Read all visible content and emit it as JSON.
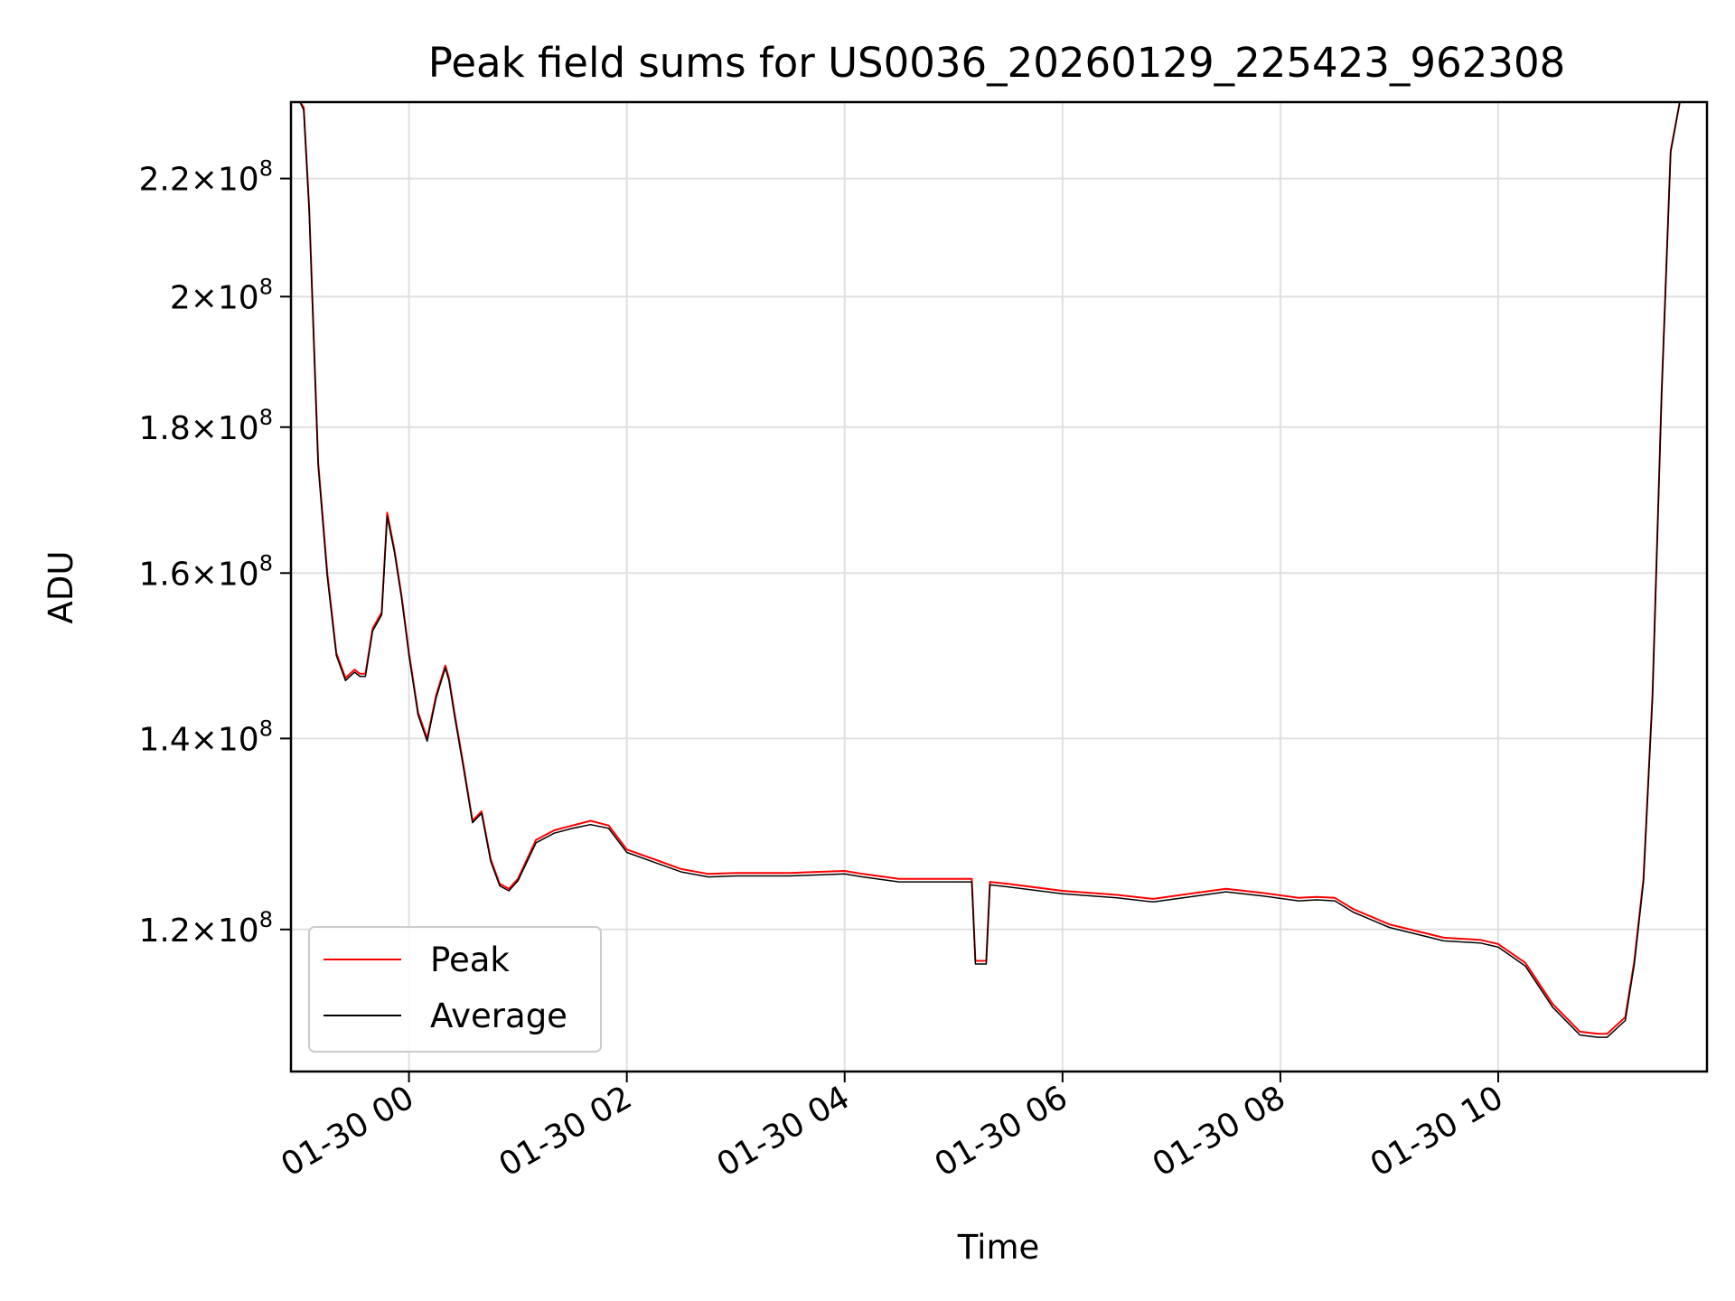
{
  "chart_data": {
    "type": "line",
    "title": "Peak field sums for US0036_20260129_225423_962308",
    "xlabel": "Time",
    "ylabel": "ADU",
    "x_axis": {
      "kind": "datetime",
      "range": [
        "2026-01-29T22:55:00",
        "2026-01-30T11:55:00"
      ],
      "ticks": [
        {
          "value": "2026-01-30T00:00:00",
          "label": "01-30 00"
        },
        {
          "value": "2026-01-30T02:00:00",
          "label": "01-30 02"
        },
        {
          "value": "2026-01-30T04:00:00",
          "label": "01-30 04"
        },
        {
          "value": "2026-01-30T06:00:00",
          "label": "01-30 06"
        },
        {
          "value": "2026-01-30T08:00:00",
          "label": "01-30 08"
        },
        {
          "value": "2026-01-30T10:00:00",
          "label": "01-30 10"
        }
      ]
    },
    "y_axis": {
      "scale": "log",
      "range": [
        107000000,
        234000000
      ],
      "ticks": [
        {
          "value": 120000000,
          "mantissa": "1.2",
          "base": "10",
          "exp": "8"
        },
        {
          "value": 140000000,
          "mantissa": "1.4",
          "base": "10",
          "exp": "8"
        },
        {
          "value": 160000000,
          "mantissa": "1.6",
          "base": "10",
          "exp": "8"
        },
        {
          "value": 180000000,
          "mantissa": "1.8",
          "base": "10",
          "exp": "8"
        },
        {
          "value": 200000000,
          "mantissa": "2",
          "base": "10",
          "exp": "8"
        },
        {
          "value": 220000000,
          "mantissa": "2.2",
          "base": "10",
          "exp": "8"
        }
      ]
    },
    "grid": true,
    "legend": {
      "placement": "lower-left"
    },
    "series": [
      {
        "name": "Peak",
        "color": "#ff0000",
        "x": [
          "2026-01-29T22:55:00",
          "2026-01-29T23:00:00",
          "2026-01-29T23:02:00",
          "2026-01-29T23:05:00",
          "2026-01-29T23:10:00",
          "2026-01-29T23:15:00",
          "2026-01-29T23:20:00",
          "2026-01-29T23:25:00",
          "2026-01-29T23:30:00",
          "2026-01-29T23:33:00",
          "2026-01-29T23:36:00",
          "2026-01-29T23:40:00",
          "2026-01-29T23:45:00",
          "2026-01-29T23:48:00",
          "2026-01-29T23:52:00",
          "2026-01-29T23:56:00",
          "2026-01-30T00:00:00",
          "2026-01-30T00:05:00",
          "2026-01-30T00:10:00",
          "2026-01-30T00:15:00",
          "2026-01-30T00:20:00",
          "2026-01-30T00:22:00",
          "2026-01-30T00:25:00",
          "2026-01-30T00:30:00",
          "2026-01-30T00:35:00",
          "2026-01-30T00:40:00",
          "2026-01-30T00:45:00",
          "2026-01-30T00:50:00",
          "2026-01-30T00:55:00",
          "2026-01-30T01:00:00",
          "2026-01-30T01:10:00",
          "2026-01-30T01:20:00",
          "2026-01-30T01:30:00",
          "2026-01-30T01:40:00",
          "2026-01-30T01:50:00",
          "2026-01-30T02:00:00",
          "2026-01-30T02:15:00",
          "2026-01-30T02:30:00",
          "2026-01-30T02:45:00",
          "2026-01-30T03:00:00",
          "2026-01-30T03:30:00",
          "2026-01-30T04:00:00",
          "2026-01-30T04:10:00",
          "2026-01-30T04:30:00",
          "2026-01-30T05:00:00",
          "2026-01-30T05:10:00",
          "2026-01-30T05:12:00",
          "2026-01-30T05:18:00",
          "2026-01-30T05:20:00",
          "2026-01-30T05:30:00",
          "2026-01-30T06:00:00",
          "2026-01-30T06:30:00",
          "2026-01-30T06:50:00",
          "2026-01-30T07:10:00",
          "2026-01-30T07:30:00",
          "2026-01-30T07:50:00",
          "2026-01-30T08:10:00",
          "2026-01-30T08:20:00",
          "2026-01-30T08:30:00",
          "2026-01-30T08:40:00",
          "2026-01-30T09:00:00",
          "2026-01-30T09:30:00",
          "2026-01-30T09:50:00",
          "2026-01-30T10:00:00",
          "2026-01-30T10:15:00",
          "2026-01-30T10:30:00",
          "2026-01-30T10:45:00",
          "2026-01-30T10:55:00",
          "2026-01-30T11:00:00",
          "2026-01-30T11:10:00",
          "2026-01-30T11:15:00",
          "2026-01-30T11:20:00",
          "2026-01-30T11:25:00",
          "2026-01-30T11:30:00",
          "2026-01-30T11:35:00",
          "2026-01-30T11:40:00",
          "2026-01-30T11:45:00",
          "2026-01-30T11:50:00",
          "2026-01-30T11:55:00"
        ],
        "y": [
          234000000,
          234000000,
          233000000,
          215000000,
          175000000,
          160000000,
          150000000,
          147000000,
          148000000,
          147500000,
          147500000,
          153000000,
          155000000,
          168000000,
          163000000,
          157000000,
          150000000,
          143000000,
          140000000,
          145000000,
          148500000,
          147000000,
          143000000,
          137000000,
          131000000,
          132000000,
          127000000,
          124500000,
          124000000,
          125000000,
          129000000,
          130000000,
          130500000,
          131000000,
          130500000,
          128000000,
          127000000,
          126000000,
          125500000,
          125600000,
          125600000,
          125800000,
          125500000,
          125000000,
          125000000,
          125000000,
          117000000,
          117000000,
          124700000,
          124500000,
          123800000,
          123400000,
          123000000,
          123500000,
          124000000,
          123600000,
          123100000,
          123200000,
          123100000,
          122000000,
          120500000,
          119200000,
          119000000,
          118600000,
          116800000,
          113000000,
          110500000,
          110300000,
          110300000,
          111800000,
          117000000,
          125000000,
          145000000,
          185000000,
          225000000,
          234000000,
          234000000,
          234000000,
          234000000
        ]
      },
      {
        "name": "Average",
        "color": "#000000",
        "x": [
          "2026-01-29T22:55:00",
          "2026-01-29T23:00:00",
          "2026-01-29T23:02:00",
          "2026-01-29T23:05:00",
          "2026-01-29T23:10:00",
          "2026-01-29T23:15:00",
          "2026-01-29T23:20:00",
          "2026-01-29T23:25:00",
          "2026-01-29T23:30:00",
          "2026-01-29T23:33:00",
          "2026-01-29T23:36:00",
          "2026-01-29T23:40:00",
          "2026-01-29T23:45:00",
          "2026-01-29T23:48:00",
          "2026-01-29T23:52:00",
          "2026-01-29T23:56:00",
          "2026-01-30T00:00:00",
          "2026-01-30T00:05:00",
          "2026-01-30T00:10:00",
          "2026-01-30T00:15:00",
          "2026-01-30T00:20:00",
          "2026-01-30T00:22:00",
          "2026-01-30T00:25:00",
          "2026-01-30T00:30:00",
          "2026-01-30T00:35:00",
          "2026-01-30T00:40:00",
          "2026-01-30T00:45:00",
          "2026-01-30T00:50:00",
          "2026-01-30T00:55:00",
          "2026-01-30T01:00:00",
          "2026-01-30T01:10:00",
          "2026-01-30T01:20:00",
          "2026-01-30T01:30:00",
          "2026-01-30T01:40:00",
          "2026-01-30T01:50:00",
          "2026-01-30T02:00:00",
          "2026-01-30T02:15:00",
          "2026-01-30T02:30:00",
          "2026-01-30T02:45:00",
          "2026-01-30T03:00:00",
          "2026-01-30T03:30:00",
          "2026-01-30T04:00:00",
          "2026-01-30T04:10:00",
          "2026-01-30T04:30:00",
          "2026-01-30T05:00:00",
          "2026-01-30T05:10:00",
          "2026-01-30T05:12:00",
          "2026-01-30T05:18:00",
          "2026-01-30T05:20:00",
          "2026-01-30T05:30:00",
          "2026-01-30T06:00:00",
          "2026-01-30T06:30:00",
          "2026-01-30T06:50:00",
          "2026-01-30T07:10:00",
          "2026-01-30T07:30:00",
          "2026-01-30T07:50:00",
          "2026-01-30T08:10:00",
          "2026-01-30T08:20:00",
          "2026-01-30T08:30:00",
          "2026-01-30T08:40:00",
          "2026-01-30T09:00:00",
          "2026-01-30T09:30:00",
          "2026-01-30T09:50:00",
          "2026-01-30T10:00:00",
          "2026-01-30T10:15:00",
          "2026-01-30T10:30:00",
          "2026-01-30T10:45:00",
          "2026-01-30T10:55:00",
          "2026-01-30T11:00:00",
          "2026-01-30T11:10:00",
          "2026-01-30T11:15:00",
          "2026-01-30T11:20:00",
          "2026-01-30T11:25:00",
          "2026-01-30T11:30:00",
          "2026-01-30T11:35:00",
          "2026-01-30T11:40:00",
          "2026-01-30T11:45:00",
          "2026-01-30T11:50:00",
          "2026-01-30T11:55:00"
        ],
        "y": [
          234000000,
          234000000,
          232500000,
          214500000,
          174500000,
          159500000,
          149700000,
          146700000,
          147700000,
          147200000,
          147200000,
          152700000,
          154700000,
          167500000,
          162700000,
          156700000,
          149700000,
          142700000,
          139700000,
          144700000,
          148200000,
          146700000,
          142700000,
          136700000,
          130800000,
          131800000,
          126800000,
          124300000,
          123800000,
          124800000,
          128700000,
          129700000,
          130200000,
          130600000,
          130200000,
          127700000,
          126700000,
          125700000,
          125200000,
          125300000,
          125300000,
          125500000,
          125200000,
          124700000,
          124700000,
          124700000,
          116700000,
          116700000,
          124400000,
          124200000,
          123500000,
          123100000,
          122700000,
          123200000,
          123700000,
          123300000,
          122800000,
          122900000,
          122800000,
          121700000,
          120200000,
          118900000,
          118700000,
          118300000,
          116500000,
          112700000,
          110200000,
          110000000,
          110000000,
          111500000,
          116700000,
          124700000,
          144700000,
          184700000,
          224700000,
          234000000,
          234000000,
          234000000,
          234000000
        ]
      }
    ]
  }
}
